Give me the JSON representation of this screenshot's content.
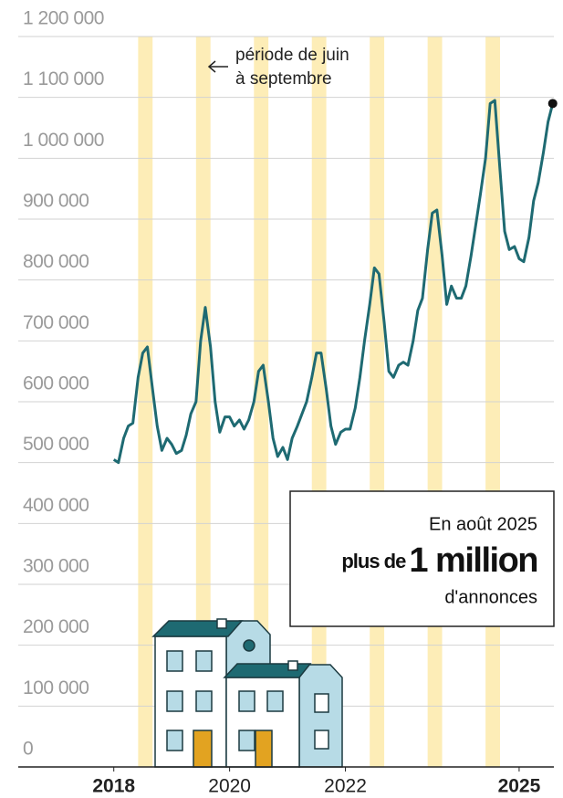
{
  "chart_data": {
    "type": "line",
    "annotation": [
      "période de juin",
      "à septembre"
    ],
    "callout": {
      "line1": "En août 2025",
      "prefix": "plus de",
      "big": "1 million",
      "line3": "d'annonces"
    },
    "color": "#1e6a72",
    "band_color": "#fdedb7",
    "grid": true,
    "bands": [
      [
        2018.42,
        2018.67
      ],
      [
        2019.42,
        2019.67
      ],
      [
        2020.42,
        2020.67
      ],
      [
        2021.42,
        2021.67
      ],
      [
        2022.42,
        2022.67
      ],
      [
        2023.42,
        2023.67
      ],
      [
        2024.42,
        2024.67
      ]
    ],
    "x": [
      2018.0,
      2018.08,
      2018.17,
      2018.25,
      2018.33,
      2018.42,
      2018.5,
      2018.58,
      2018.67,
      2018.75,
      2018.83,
      2018.92,
      2019.0,
      2019.08,
      2019.17,
      2019.25,
      2019.33,
      2019.42,
      2019.5,
      2019.58,
      2019.67,
      2019.75,
      2019.83,
      2019.92,
      2020.0,
      2020.08,
      2020.17,
      2020.25,
      2020.33,
      2020.42,
      2020.5,
      2020.58,
      2020.67,
      2020.75,
      2020.83,
      2020.92,
      2021.0,
      2021.08,
      2021.17,
      2021.25,
      2021.33,
      2021.42,
      2021.5,
      2021.58,
      2021.67,
      2021.75,
      2021.83,
      2021.92,
      2022.0,
      2022.08,
      2022.17,
      2022.25,
      2022.33,
      2022.42,
      2022.5,
      2022.58,
      2022.67,
      2022.75,
      2022.83,
      2022.92,
      2023.0,
      2023.08,
      2023.17,
      2023.25,
      2023.33,
      2023.42,
      2023.5,
      2023.58,
      2023.67,
      2023.75,
      2023.83,
      2023.92,
      2024.0,
      2024.08,
      2024.17,
      2024.25,
      2024.33,
      2024.42,
      2024.5,
      2024.58,
      2024.67,
      2024.75,
      2024.83,
      2024.92,
      2025.0,
      2025.08,
      2025.17,
      2025.25,
      2025.33,
      2025.42,
      2025.5,
      2025.58
    ],
    "values": [
      505000,
      500000,
      540000,
      560000,
      565000,
      640000,
      680000,
      690000,
      620000,
      560000,
      520000,
      540000,
      530000,
      515000,
      520000,
      545000,
      580000,
      600000,
      700000,
      755000,
      690000,
      600000,
      550000,
      575000,
      575000,
      560000,
      570000,
      555000,
      570000,
      600000,
      650000,
      660000,
      600000,
      540000,
      510000,
      525000,
      505000,
      540000,
      560000,
      580000,
      600000,
      640000,
      680000,
      680000,
      620000,
      560000,
      530000,
      550000,
      555000,
      555000,
      590000,
      640000,
      700000,
      760000,
      820000,
      810000,
      730000,
      650000,
      640000,
      660000,
      665000,
      660000,
      700000,
      750000,
      770000,
      850000,
      910000,
      915000,
      840000,
      760000,
      790000,
      770000,
      770000,
      790000,
      840000,
      890000,
      940000,
      1000000,
      1090000,
      1095000,
      980000,
      880000,
      850000,
      855000,
      835000,
      830000,
      870000,
      930000,
      960000,
      1010000,
      1060000,
      1090000
    ],
    "xlim": [
      2016.35,
      2025.6
    ],
    "xticks": [
      2018,
      2020,
      2022,
      2025
    ],
    "ylim": [
      0,
      1200000
    ],
    "yticks": [
      0,
      {
        "value": 100000,
        "label": "100 000"
      },
      {
        "value": 200000,
        "label": "200 000"
      },
      {
        "value": 300000,
        "label": "300 000"
      },
      {
        "value": 400000,
        "label": "400 000"
      },
      {
        "value": 500000,
        "label": "500 000"
      },
      {
        "value": 600000,
        "label": "600 000"
      },
      {
        "value": 700000,
        "label": "700 000"
      },
      {
        "value": 800000,
        "label": "800 000"
      },
      {
        "value": 900000,
        "label": "900 000"
      },
      {
        "value": 1000000,
        "label": "1 000 000"
      },
      {
        "value": 1100000,
        "label": "1 100 000"
      },
      {
        "value": 1200000,
        "label": "1 200 000"
      }
    ]
  }
}
